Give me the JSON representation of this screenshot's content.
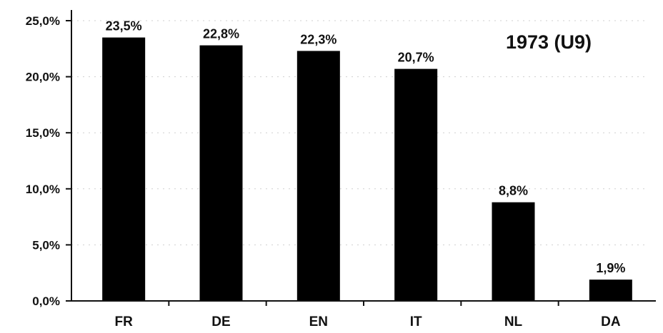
{
  "chart_data": {
    "type": "bar",
    "title": "1973 (U9)",
    "xlabel": "",
    "ylabel": "",
    "categories": [
      "FR",
      "DE",
      "EN",
      "IT",
      "NL",
      "DA"
    ],
    "values": [
      23.5,
      22.8,
      22.3,
      20.7,
      8.8,
      1.9
    ],
    "value_labels": [
      "23,5%",
      "22,8%",
      "22,3%",
      "20,7%",
      "8,8%",
      "1,9%"
    ],
    "ylim": [
      0,
      25
    ],
    "yticks": [
      0,
      5,
      10,
      15,
      20,
      25
    ],
    "ytick_labels": [
      "0,0%",
      "5,0%",
      "10,0%",
      "15,0%",
      "20,0%",
      "25,0%"
    ],
    "grid": true,
    "legend": "none",
    "bar_color": "#000000"
  }
}
